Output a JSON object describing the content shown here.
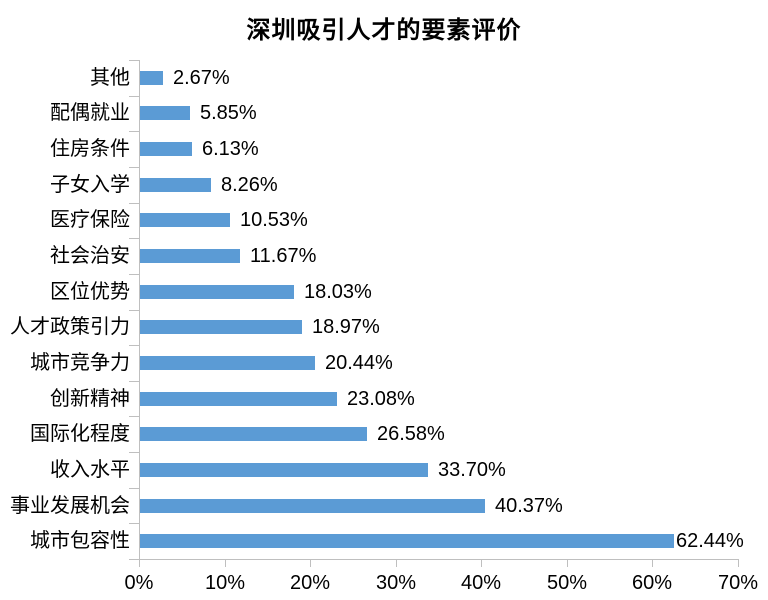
{
  "chart_data": {
    "type": "bar",
    "orientation": "horizontal",
    "title": "深圳吸引人才的要素评价",
    "categories": [
      "其他",
      "配偶就业",
      "住房条件",
      "子女入学",
      "医疗保险",
      "社会治安",
      "区位优势",
      "人才政策引力",
      "城市竞争力",
      "创新精神",
      "国际化程度",
      "收入水平",
      "事业发展机会",
      "城市包容性"
    ],
    "values": [
      2.67,
      5.85,
      6.13,
      8.26,
      10.53,
      11.67,
      18.03,
      18.97,
      20.44,
      23.08,
      26.58,
      33.7,
      40.37,
      62.44
    ],
    "value_labels": [
      "2.67%",
      "5.85%",
      "6.13%",
      "8.26%",
      "10.53%",
      "11.67%",
      "18.03%",
      "18.97%",
      "20.44%",
      "23.08%",
      "26.58%",
      "33.70%",
      "40.37%",
      "62.44%"
    ],
    "x_ticks": [
      "0%",
      "10%",
      "20%",
      "30%",
      "40%",
      "50%",
      "60%",
      "70%"
    ],
    "xlim": [
      0,
      70
    ],
    "xlabel": "",
    "ylabel": "",
    "grid": "off",
    "legend": "none",
    "bar_color": "#5B9BD5",
    "axis_color": "#BFBFBF",
    "text_color": "#000000",
    "background_color": "#FFFFFF"
  }
}
